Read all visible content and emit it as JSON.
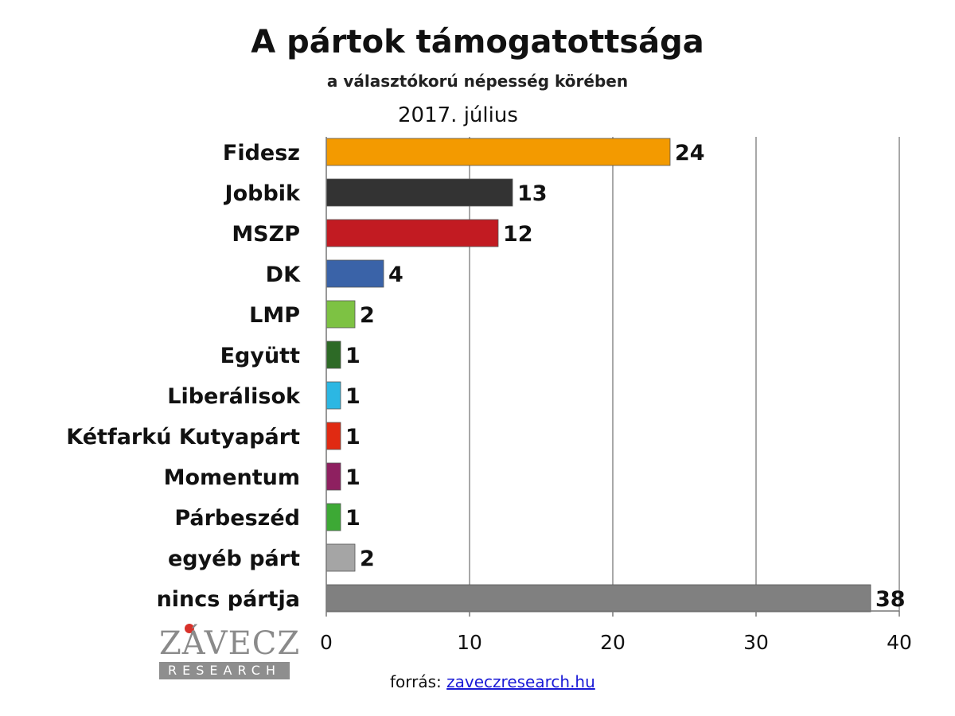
{
  "header": {
    "title": "A pártok támogatottsága",
    "subtitle": "a választókorú népesség körében",
    "period": "2017. július"
  },
  "chart_data": {
    "type": "bar",
    "orientation": "horizontal",
    "categories": [
      "Fidesz",
      "Jobbik",
      "MSZP",
      "DK",
      "LMP",
      "Együtt",
      "Liberálisok",
      "Kétfarkú Kutyapárt",
      "Momentum",
      "Párbeszéd",
      "egyéb párt",
      "nincs pártja"
    ],
    "values": [
      24,
      13,
      12,
      4,
      2,
      1,
      1,
      1,
      1,
      1,
      2,
      38
    ],
    "colors": [
      "#f39a00",
      "#333333",
      "#c21b22",
      "#3a63a8",
      "#7dc243",
      "#2d6a26",
      "#2cb7e3",
      "#e02a12",
      "#8e2060",
      "#3da935",
      "#a5a5a5",
      "#808080"
    ],
    "xlim": [
      0,
      40
    ],
    "xticks": [
      0,
      10,
      20,
      30,
      40
    ],
    "grid": true,
    "data_labels": true
  },
  "logo": {
    "word": "ZÁVECZ",
    "tagline": "RESEARCH"
  },
  "source": {
    "prefix": "forrás:",
    "link_text": "zaveczresearch.hu"
  }
}
